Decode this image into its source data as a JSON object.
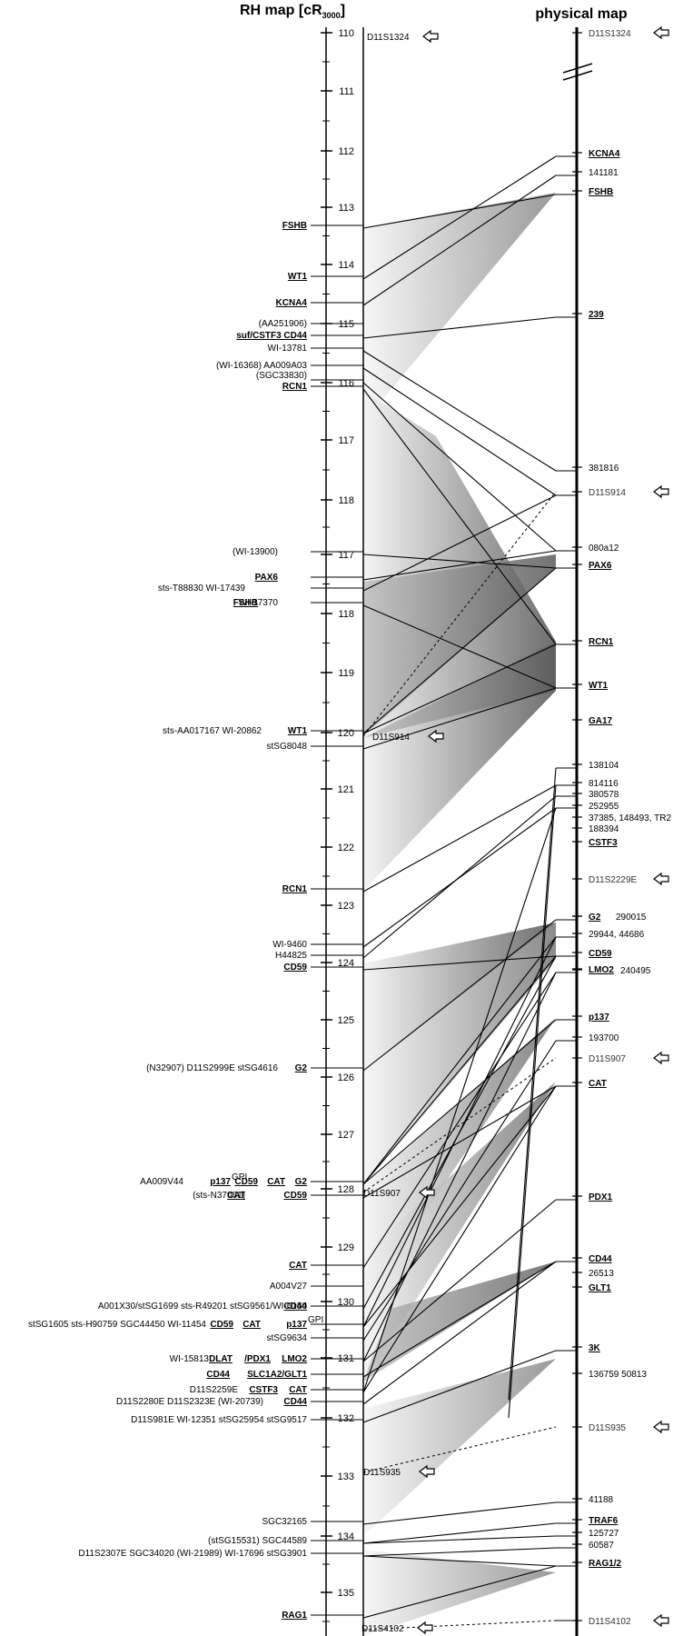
{
  "header": {
    "rh_title": "RH map [cR",
    "rh_sub": "3000",
    "rh_close": "]",
    "phys_title": "physical map"
  },
  "rh_scale": {
    "ticks": [
      "110",
      "111",
      "112",
      "113",
      "114",
      "115",
      "116",
      "117",
      "118",
      "117",
      "118",
      "119",
      "120",
      "121",
      "122",
      "123",
      "124",
      "125",
      "126",
      "127",
      "128",
      "129",
      "130",
      "131",
      "132",
      "133",
      "134",
      "135"
    ]
  },
  "rh_markers": [
    "(AA251906)",
    "WI-13781",
    "(WI-16368) AA009A03",
    "(SGC33830)",
    "(WI-13900)",
    "sts-T88830  WI-17439",
    "WI-17370",
    "sts-AA017167  WI-20862",
    "stSG8048",
    "WI-9460",
    "H44825",
    "(N32907) D11S2999E stSG4616",
    "AA009V44",
    "(sts-N37061)",
    "A004V27",
    "A001X30/stSG1699  sts-R49201  stSG9561/WI-6150",
    "stSG1605  sts-H90759  SGC44450  WI-11454",
    "stSG9634",
    "WI-15813",
    "D11S2259E",
    "D11S2280E  D11S2323E  (WI-20739)",
    "D11S981E  WI-12351  stSG25954  stSG9517",
    "SGC32165",
    "(stSG15531)  SGC44589",
    "D11S2307E  SGC34020 (WI-21989) WI-17696  stSG3901"
  ],
  "rh_genes": [
    "FSHB",
    "WT1",
    "KCNA4",
    "suf/CSTF3  CD44",
    "RCN1",
    "PAX6",
    "FSHB",
    "WT1",
    "RCN1",
    "CD59",
    "G2",
    "p137",
    "CD59",
    "CAT",
    "G2",
    "CAT",
    "CD59",
    "CAT",
    "CD44",
    "CD59",
    "CAT",
    "p137",
    "DLAT",
    "/PDX1",
    "LMO2",
    "CD44",
    "SLC1A2/GLT1",
    "CSTF3",
    "CAT",
    "CD44",
    "RAG1"
  ],
  "rh_gene_sup": "GPI",
  "rh_anchors": [
    "D11S1324",
    "D11S914",
    "D11S907",
    "D11S935",
    "D11S4102"
  ],
  "physical_labels": [
    {
      "label": "D11S1324",
      "style": "gray"
    },
    {
      "label": "KCNA4",
      "style": "gene"
    },
    {
      "label": "141181",
      "style": "plain"
    },
    {
      "label": "FSHB",
      "style": "gene"
    },
    {
      "label": "239",
      "style": "gene"
    },
    {
      "label": "381816",
      "style": "plain"
    },
    {
      "label": "D11S914",
      "style": "gray"
    },
    {
      "label": "080a12",
      "style": "plain"
    },
    {
      "label": "PAX6",
      "style": "gene"
    },
    {
      "label": "RCN1",
      "style": "gene"
    },
    {
      "label": "WT1",
      "style": "gene"
    },
    {
      "label": "GA17",
      "style": "gene"
    },
    {
      "label": "138104",
      "style": "plain"
    },
    {
      "label": "814116",
      "style": "plain"
    },
    {
      "label": "380578",
      "style": "plain"
    },
    {
      "label": "252955",
      "style": "plain"
    },
    {
      "label": "37385, 148493, TR2",
      "style": "plain"
    },
    {
      "label": "188394",
      "style": "plain"
    },
    {
      "label": "CSTF3",
      "style": "gene"
    },
    {
      "label": "D11S2229E",
      "style": "gray"
    },
    {
      "label": "G2",
      "style": "gene"
    },
    {
      "label": "290015",
      "style": "plain"
    },
    {
      "label": "29944, 44686",
      "style": "plain"
    },
    {
      "label": "CD59",
      "style": "gene"
    },
    {
      "label": "LMO2",
      "style": "gene"
    },
    {
      "label": "240495",
      "style": "plain"
    },
    {
      "label": "p137",
      "style": "gene"
    },
    {
      "label": "193700",
      "style": "plain"
    },
    {
      "label": "D11S907",
      "style": "gray"
    },
    {
      "label": "CAT",
      "style": "gene"
    },
    {
      "label": "PDX1",
      "style": "gene"
    },
    {
      "label": "CD44",
      "style": "gene"
    },
    {
      "label": "26513",
      "style": "plain"
    },
    {
      "label": "GLT1",
      "style": "gene"
    },
    {
      "label": "3K",
      "style": "gene"
    },
    {
      "label": "136759  50813",
      "style": "plain"
    },
    {
      "label": "D11S935",
      "style": "gray"
    },
    {
      "label": "41188",
      "style": "plain"
    },
    {
      "label": "TRAF6",
      "style": "gene"
    },
    {
      "label": "125727",
      "style": "plain"
    },
    {
      "label": "60587",
      "style": "plain"
    },
    {
      "label": "RAG1/2",
      "style": "gene"
    },
    {
      "label": "D11S4102",
      "style": "gray"
    }
  ],
  "colors": {
    "line": "#000000",
    "shade_dark": "#6a6a6a",
    "shade_light": "#f2f2f2",
    "shade_mid": "#a8a8a8"
  }
}
